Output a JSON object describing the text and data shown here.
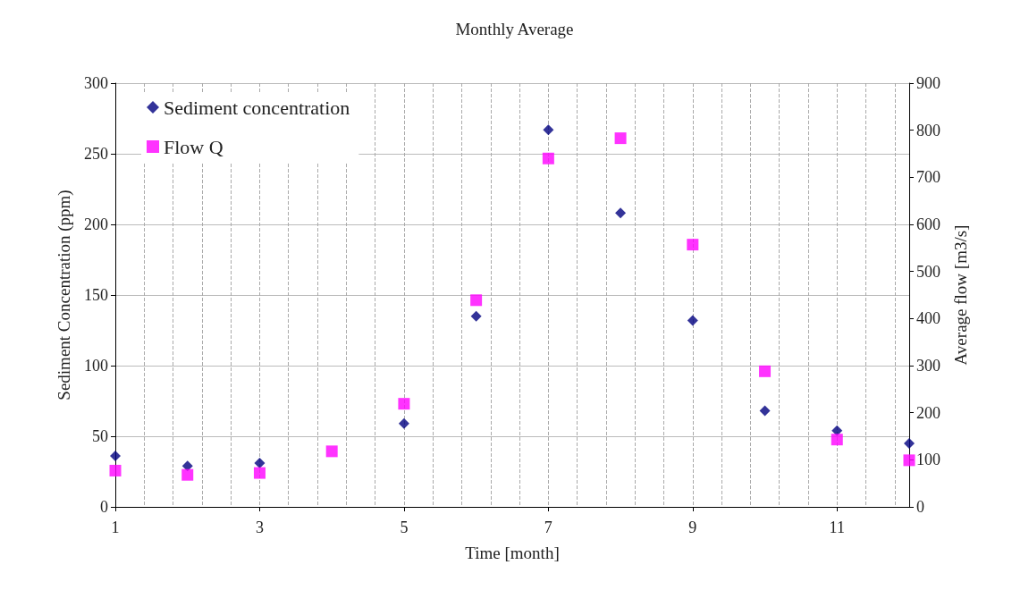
{
  "chart_data": {
    "type": "scatter",
    "title": "Monthly Average",
    "xlabel": "Time [month]",
    "ylabel": "Sediment Concentration (ppm)",
    "y2label": "Average flow [m3/s]",
    "x": [
      1,
      2,
      3,
      4,
      5,
      6,
      7,
      8,
      9,
      10,
      11,
      12
    ],
    "series": [
      {
        "name": "Sediment concentration",
        "color": "#000080",
        "marker": "diamond",
        "values": [
          36,
          29,
          31,
          null,
          59,
          135,
          267,
          208,
          132,
          68,
          54,
          45
        ]
      },
      {
        "name": "Flow Q",
        "color": "#ff00ff",
        "marker": "square",
        "axis": "y2",
        "values": [
          77,
          68,
          72,
          118,
          219,
          439,
          740,
          783,
          557,
          288,
          143,
          99
        ]
      }
    ],
    "xlim": [
      1,
      12
    ],
    "xticks": [
      1,
      3,
      5,
      7,
      9,
      11
    ],
    "ylim": [
      0,
      300
    ],
    "yticks": [
      0,
      50,
      100,
      150,
      200,
      250,
      300
    ],
    "y2lim": [
      0,
      900
    ],
    "y2ticks": [
      0,
      100,
      200,
      300,
      400,
      500,
      600,
      700,
      800,
      900
    ],
    "grid": true,
    "legend": "top left"
  }
}
